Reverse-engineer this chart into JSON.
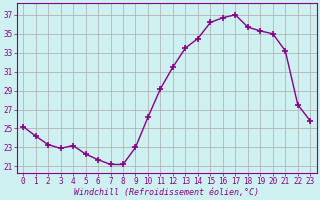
{
  "x": [
    0,
    1,
    2,
    3,
    4,
    5,
    6,
    7,
    8,
    9,
    10,
    11,
    12,
    13,
    14,
    15,
    16,
    17,
    18,
    19,
    20,
    21,
    22,
    23
  ],
  "y": [
    25.2,
    24.2,
    23.3,
    22.9,
    23.2,
    22.3,
    21.7,
    21.2,
    21.2,
    23.0,
    26.2,
    29.2,
    31.5,
    33.5,
    34.5,
    36.2,
    36.7,
    37.0,
    35.7,
    35.3,
    35.0,
    33.2,
    27.5,
    25.8
  ],
  "line_color": "#880088",
  "marker": "+",
  "marker_size": 4,
  "bg_color": "#cff0f0",
  "grid_color": "#aaaaaa",
  "xlabel": "Windchill (Refroidissement éolien,°C)",
  "ylabel_ticks": [
    21,
    23,
    25,
    27,
    29,
    31,
    33,
    35,
    37
  ],
  "xtick_labels": [
    "0",
    "1",
    "2",
    "3",
    "4",
    "5",
    "6",
    "7",
    "8",
    "9",
    "10",
    "11",
    "12",
    "13",
    "14",
    "15",
    "16",
    "17",
    "18",
    "19",
    "20",
    "21",
    "22",
    "23"
  ],
  "xlim": [
    -0.5,
    23.5
  ],
  "ylim": [
    20.3,
    38.2
  ],
  "label_color": "#880088",
  "tick_color": "#880088",
  "tick_fontsize": 5.5,
  "xlabel_fontsize": 6.0,
  "linewidth": 1.0,
  "marker_linewidth": 1.2
}
